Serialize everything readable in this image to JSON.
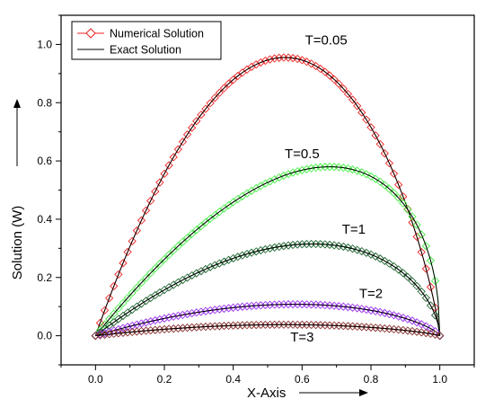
{
  "chart_data": {
    "type": "line",
    "xlabel": "X-Axis",
    "ylabel": "Solution (W)",
    "xlim": [
      -0.1,
      1.1
    ],
    "ylim": [
      -0.1,
      1.1
    ],
    "xticks": [
      "0.0",
      "0.2",
      "0.4",
      "0.6",
      "0.8",
      "1.0"
    ],
    "yticks": [
      "0.0",
      "0.2",
      "0.4",
      "0.6",
      "0.8",
      "1.0"
    ],
    "grid": false,
    "legend": {
      "placement": "top-left",
      "entries": [
        {
          "label": "Numerical Solution",
          "marker": "diamond"
        },
        {
          "label": "Exact  Solution",
          "marker": "line"
        }
      ]
    },
    "series": [
      {
        "label": "T=0.05",
        "peak_x": 0.55,
        "peak_y": 0.955,
        "color": "#ee2222",
        "line_color": "#000000",
        "label_at": [
          0.67,
          1.0
        ]
      },
      {
        "label": "T=0.5",
        "peak_x": 0.68,
        "peak_y": 0.58,
        "color": "#44ee44",
        "line_color": "#000000",
        "label_at": [
          0.6,
          0.61
        ]
      },
      {
        "label": "T=1",
        "peak_x": 0.63,
        "peak_y": 0.315,
        "color": "#226633",
        "line_color": "#000000",
        "label_at": [
          0.75,
          0.35
        ]
      },
      {
        "label": "T=2",
        "peak_x": 0.58,
        "peak_y": 0.108,
        "color": "#9933ee",
        "line_color": "#000000",
        "label_at": [
          0.8,
          0.13
        ]
      },
      {
        "label": "T=3",
        "peak_x": 0.55,
        "peak_y": 0.038,
        "color": "#883333",
        "line_color": "#000000",
        "label_at": [
          0.6,
          -0.02
        ]
      }
    ]
  }
}
